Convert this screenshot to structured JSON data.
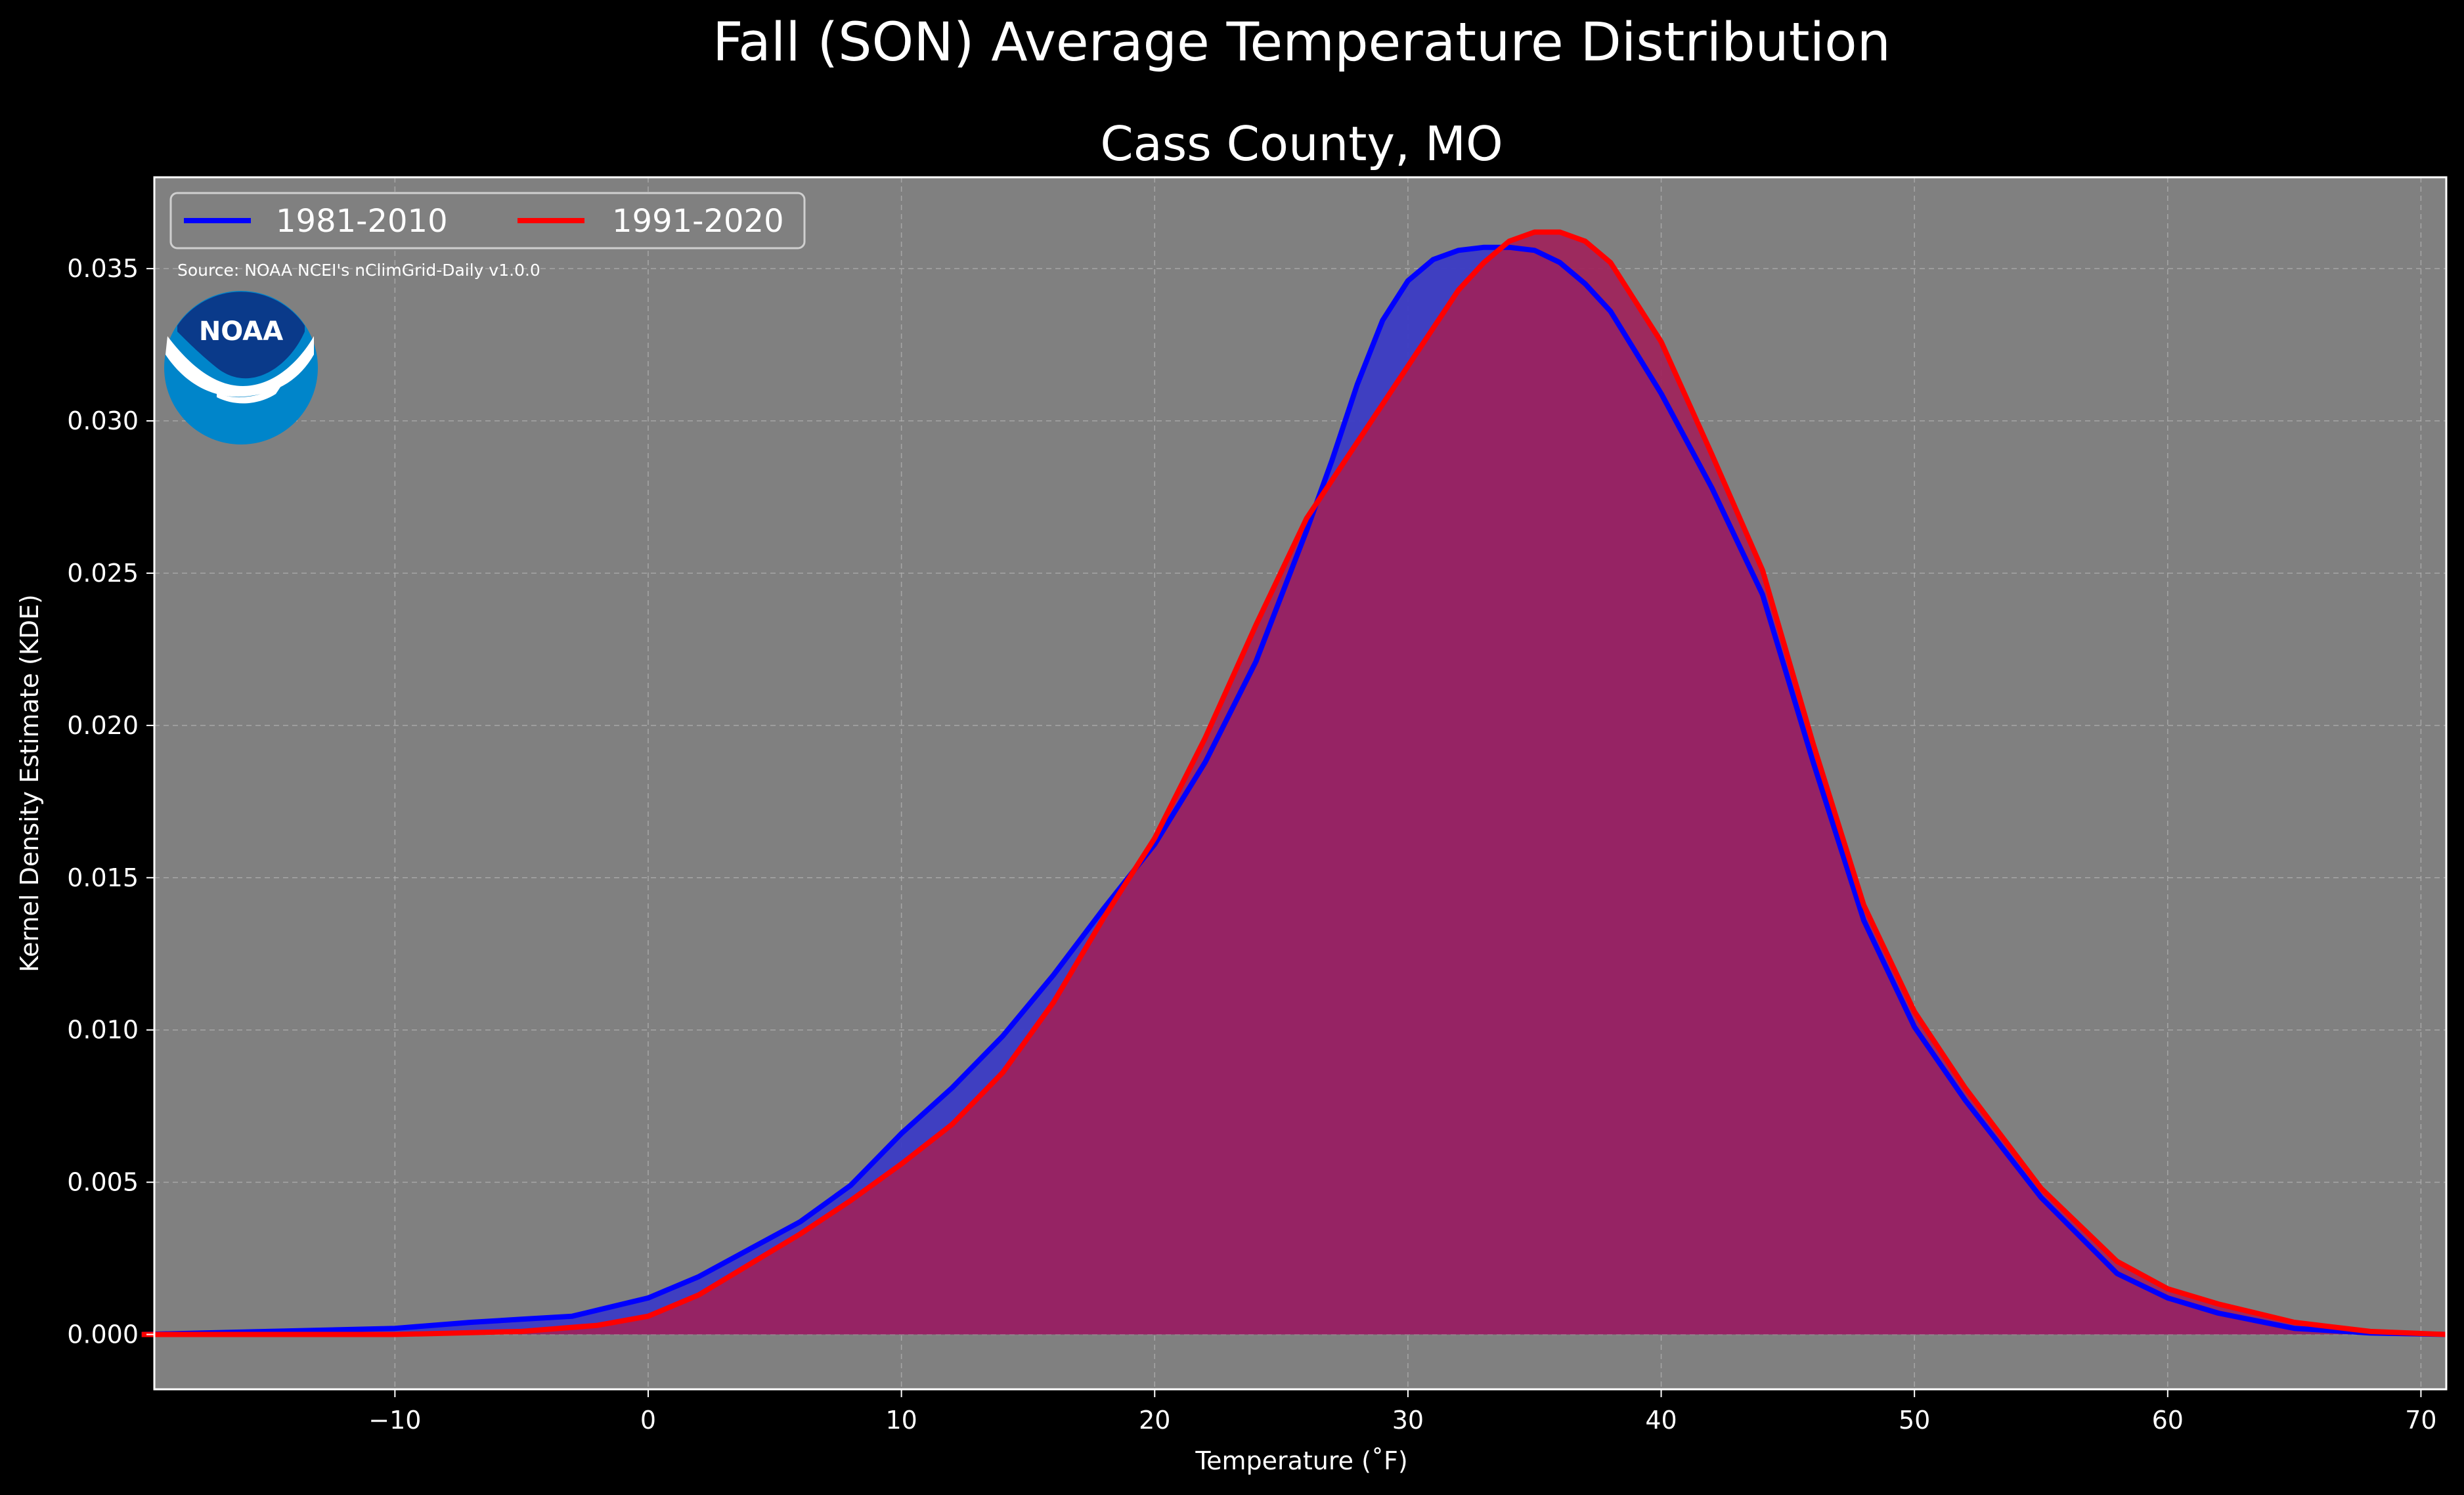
{
  "chart_data": {
    "type": "area",
    "suptitle": "Fall (SON) Average Temperature Distribution",
    "title": "Cass County, MO",
    "xlabel": "Temperature (˚F)",
    "ylabel": "Kernel Density Estimate (KDE)",
    "xlim": [
      -19.5,
      71
    ],
    "ylim": [
      -0.0018,
      0.038
    ],
    "xticks": [
      -10,
      0,
      10,
      20,
      30,
      40,
      50,
      60,
      70
    ],
    "xtick_labels": [
      "−10",
      "0",
      "10",
      "20",
      "30",
      "40",
      "50",
      "60",
      "70"
    ],
    "yticks": [
      0.0,
      0.005,
      0.01,
      0.015,
      0.02,
      0.025,
      0.03,
      0.035
    ],
    "ytick_labels": [
      "0.000",
      "0.005",
      "0.010",
      "0.015",
      "0.020",
      "0.025",
      "0.030",
      "0.035"
    ],
    "grid": true,
    "legend_position": "top-left",
    "source_text": "Source: NOAA NCEI's nClimGrid-Daily v1.0.0",
    "logo_text": "NOAA",
    "series": [
      {
        "name": "1981-2010",
        "color": "#0000ff",
        "fill": "#3b3bc4",
        "x": [
          -20,
          -15,
          -10,
          -7,
          -5,
          -3,
          -2,
          0,
          2,
          4,
          6,
          8,
          10,
          12,
          14,
          16,
          18,
          20,
          22,
          24,
          26,
          27,
          28,
          29,
          30,
          31,
          32,
          33,
          34,
          35,
          36,
          37,
          38,
          40,
          42,
          44,
          46,
          48,
          50,
          52,
          55,
          58,
          60,
          62,
          65,
          68,
          71
        ],
        "y": [
          0.0,
          0.0001,
          0.0002,
          0.0004,
          0.0005,
          0.0006,
          0.0008,
          0.0012,
          0.0019,
          0.0028,
          0.0037,
          0.0049,
          0.0066,
          0.0081,
          0.0098,
          0.0118,
          0.014,
          0.0161,
          0.0188,
          0.0221,
          0.0264,
          0.0287,
          0.0312,
          0.0333,
          0.0346,
          0.0353,
          0.0356,
          0.0357,
          0.0357,
          0.0356,
          0.0352,
          0.0345,
          0.0336,
          0.0309,
          0.0278,
          0.0243,
          0.0188,
          0.0136,
          0.0101,
          0.0077,
          0.0045,
          0.002,
          0.0012,
          0.0007,
          0.0002,
          5e-05,
          0.0
        ]
      },
      {
        "name": "1991-2020",
        "color": "#ff0000",
        "fill": "#a0205a",
        "x": [
          -20,
          -15,
          -10,
          -5,
          -2,
          0,
          2,
          4,
          6,
          8,
          10,
          12,
          14,
          16,
          18,
          20,
          22,
          24,
          26,
          28,
          30,
          32,
          33,
          34,
          35,
          36,
          37,
          38,
          40,
          42,
          44,
          46,
          48,
          50,
          52,
          55,
          58,
          60,
          62,
          65,
          68,
          71
        ],
        "y": [
          0.0,
          0.0,
          0.0,
          0.0001,
          0.0003,
          0.0006,
          0.0013,
          0.0023,
          0.0033,
          0.0044,
          0.0056,
          0.0069,
          0.0086,
          0.0109,
          0.0137,
          0.0163,
          0.0196,
          0.0233,
          0.0268,
          0.0293,
          0.0318,
          0.0343,
          0.0352,
          0.0359,
          0.0362,
          0.0362,
          0.0359,
          0.0352,
          0.0326,
          0.0289,
          0.0251,
          0.0194,
          0.0141,
          0.0106,
          0.0081,
          0.0048,
          0.0024,
          0.0015,
          0.001,
          0.0004,
          0.0001,
          0.0
        ]
      }
    ]
  }
}
